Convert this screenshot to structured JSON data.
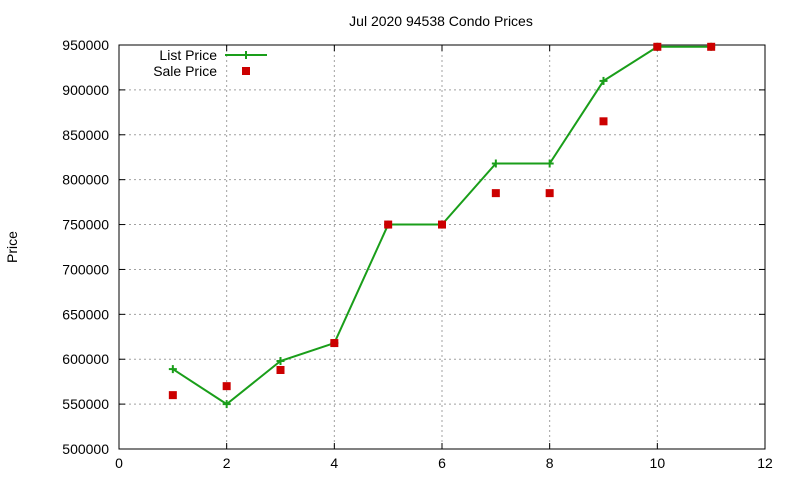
{
  "chart_data": {
    "type": "line",
    "title": "Jul 2020 94538 Condo Prices",
    "xlabel": "",
    "ylabel": "Price",
    "xlim": [
      0,
      12
    ],
    "ylim": [
      500000,
      950000
    ],
    "x_ticks": [
      0,
      2,
      4,
      6,
      8,
      10,
      12
    ],
    "y_ticks": [
      500000,
      550000,
      600000,
      650000,
      700000,
      750000,
      800000,
      850000,
      900000,
      950000
    ],
    "grid": true,
    "legend_position": "top-left",
    "series": [
      {
        "name": "List Price",
        "style": "line-plus",
        "color": "#1a9e1a",
        "x": [
          1,
          2,
          3,
          4,
          5,
          6,
          7,
          8,
          9,
          10,
          11
        ],
        "values": [
          589000,
          550000,
          598000,
          618000,
          750000,
          750000,
          818000,
          818000,
          910000,
          948000,
          948000
        ]
      },
      {
        "name": "Sale Price",
        "style": "square-points",
        "color": "#cc0000",
        "x": [
          1,
          2,
          3,
          4,
          5,
          6,
          7,
          8,
          9,
          10,
          11
        ],
        "values": [
          560000,
          570000,
          588000,
          618000,
          750000,
          750000,
          785000,
          785000,
          865000,
          948000,
          948000
        ]
      }
    ]
  }
}
